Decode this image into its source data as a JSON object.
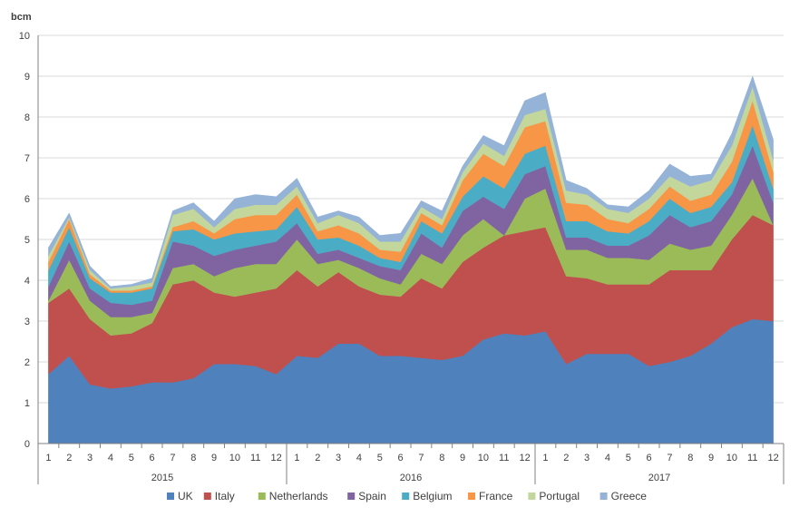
{
  "chart_data": {
    "type": "area",
    "stacked": true,
    "ylabel": "bcm",
    "ylim": [
      0,
      10
    ],
    "yticks": [
      0,
      1,
      2,
      3,
      4,
      5,
      6,
      7,
      8,
      9,
      10
    ],
    "grid": true,
    "legend_position": "bottom",
    "months": [
      "1",
      "2",
      "3",
      "4",
      "5",
      "6",
      "7",
      "8",
      "9",
      "10",
      "11",
      "12",
      "1",
      "2",
      "3",
      "4",
      "5",
      "6",
      "7",
      "8",
      "9",
      "10",
      "11",
      "12",
      "1",
      "2",
      "3",
      "4",
      "5",
      "6",
      "7",
      "8",
      "9",
      "10",
      "11",
      "12"
    ],
    "years": [
      "2015",
      "2016",
      "2017"
    ],
    "series": [
      {
        "name": "UK",
        "color": "#4f81bd",
        "values": [
          1.7,
          2.15,
          1.45,
          1.35,
          1.4,
          1.5,
          1.5,
          1.6,
          1.95,
          1.95,
          1.9,
          1.7,
          2.15,
          2.1,
          2.45,
          2.45,
          2.15,
          2.15,
          2.1,
          2.05,
          2.15,
          2.55,
          2.7,
          2.65,
          2.75,
          1.95,
          2.2,
          2.2,
          2.2,
          1.9,
          2.0,
          2.15,
          2.45,
          2.85,
          3.05,
          3.0
        ]
      },
      {
        "name": "Italy",
        "color": "#c0504d",
        "values": [
          1.75,
          1.65,
          1.6,
          1.3,
          1.3,
          1.45,
          2.4,
          2.4,
          1.75,
          1.65,
          1.8,
          2.1,
          2.1,
          1.75,
          1.75,
          1.4,
          1.5,
          1.45,
          1.95,
          1.75,
          2.3,
          2.25,
          2.4,
          2.55,
          2.55,
          2.15,
          1.85,
          1.7,
          1.7,
          2.0,
          2.25,
          2.1,
          1.8,
          2.15,
          2.55,
          2.35
        ]
      },
      {
        "name": "Netherlands",
        "color": "#9bbb59",
        "values": [
          0.05,
          0.7,
          0.45,
          0.45,
          0.4,
          0.25,
          0.4,
          0.4,
          0.4,
          0.7,
          0.7,
          0.6,
          0.75,
          0.55,
          0.3,
          0.45,
          0.4,
          0.3,
          0.6,
          0.6,
          0.65,
          0.7,
          0.0,
          0.8,
          0.95,
          0.65,
          0.7,
          0.65,
          0.65,
          0.6,
          0.65,
          0.5,
          0.6,
          0.6,
          0.9,
          0.0
        ]
      },
      {
        "name": "Spain",
        "color": "#8064a2",
        "values": [
          0.35,
          0.45,
          0.3,
          0.35,
          0.3,
          0.3,
          0.65,
          0.45,
          0.5,
          0.45,
          0.45,
          0.55,
          0.4,
          0.25,
          0.25,
          0.25,
          0.3,
          0.35,
          0.5,
          0.4,
          0.6,
          0.55,
          0.65,
          0.6,
          0.55,
          0.3,
          0.3,
          0.3,
          0.3,
          0.6,
          0.7,
          0.55,
          0.6,
          0.5,
          0.8,
          0.55
        ]
      },
      {
        "name": "Belgium",
        "color": "#4bacc6",
        "values": [
          0.4,
          0.35,
          0.25,
          0.25,
          0.3,
          0.3,
          0.25,
          0.4,
          0.4,
          0.4,
          0.35,
          0.3,
          0.4,
          0.35,
          0.3,
          0.3,
          0.2,
          0.2,
          0.3,
          0.35,
          0.35,
          0.5,
          0.5,
          0.5,
          0.5,
          0.4,
          0.4,
          0.35,
          0.3,
          0.35,
          0.4,
          0.35,
          0.35,
          0.3,
          0.5,
          0.35
        ]
      },
      {
        "name": "France",
        "color": "#f79646",
        "values": [
          0.2,
          0.2,
          0.1,
          0.05,
          0.05,
          0.05,
          0.1,
          0.2,
          0.15,
          0.35,
          0.4,
          0.35,
          0.3,
          0.2,
          0.3,
          0.3,
          0.2,
          0.25,
          0.2,
          0.2,
          0.4,
          0.55,
          0.55,
          0.65,
          0.6,
          0.45,
          0.4,
          0.3,
          0.25,
          0.3,
          0.3,
          0.3,
          0.3,
          0.5,
          0.6,
          0.4
        ]
      },
      {
        "name": "Portugal",
        "color": "#c3d69b",
        "values": [
          0.15,
          0.05,
          0.1,
          0.05,
          0.1,
          0.1,
          0.3,
          0.3,
          0.15,
          0.25,
          0.25,
          0.25,
          0.2,
          0.2,
          0.25,
          0.25,
          0.2,
          0.25,
          0.15,
          0.15,
          0.2,
          0.25,
          0.25,
          0.3,
          0.3,
          0.3,
          0.25,
          0.25,
          0.25,
          0.25,
          0.25,
          0.35,
          0.35,
          0.4,
          0.35,
          0.3
        ]
      },
      {
        "name": "Greece",
        "color": "#95b3d7",
        "values": [
          0.2,
          0.1,
          0.1,
          0.05,
          0.05,
          0.1,
          0.1,
          0.15,
          0.15,
          0.25,
          0.25,
          0.2,
          0.2,
          0.15,
          0.1,
          0.15,
          0.15,
          0.2,
          0.15,
          0.2,
          0.15,
          0.2,
          0.25,
          0.35,
          0.4,
          0.25,
          0.15,
          0.1,
          0.15,
          0.2,
          0.3,
          0.25,
          0.15,
          0.3,
          0.25,
          0.5
        ]
      }
    ]
  }
}
